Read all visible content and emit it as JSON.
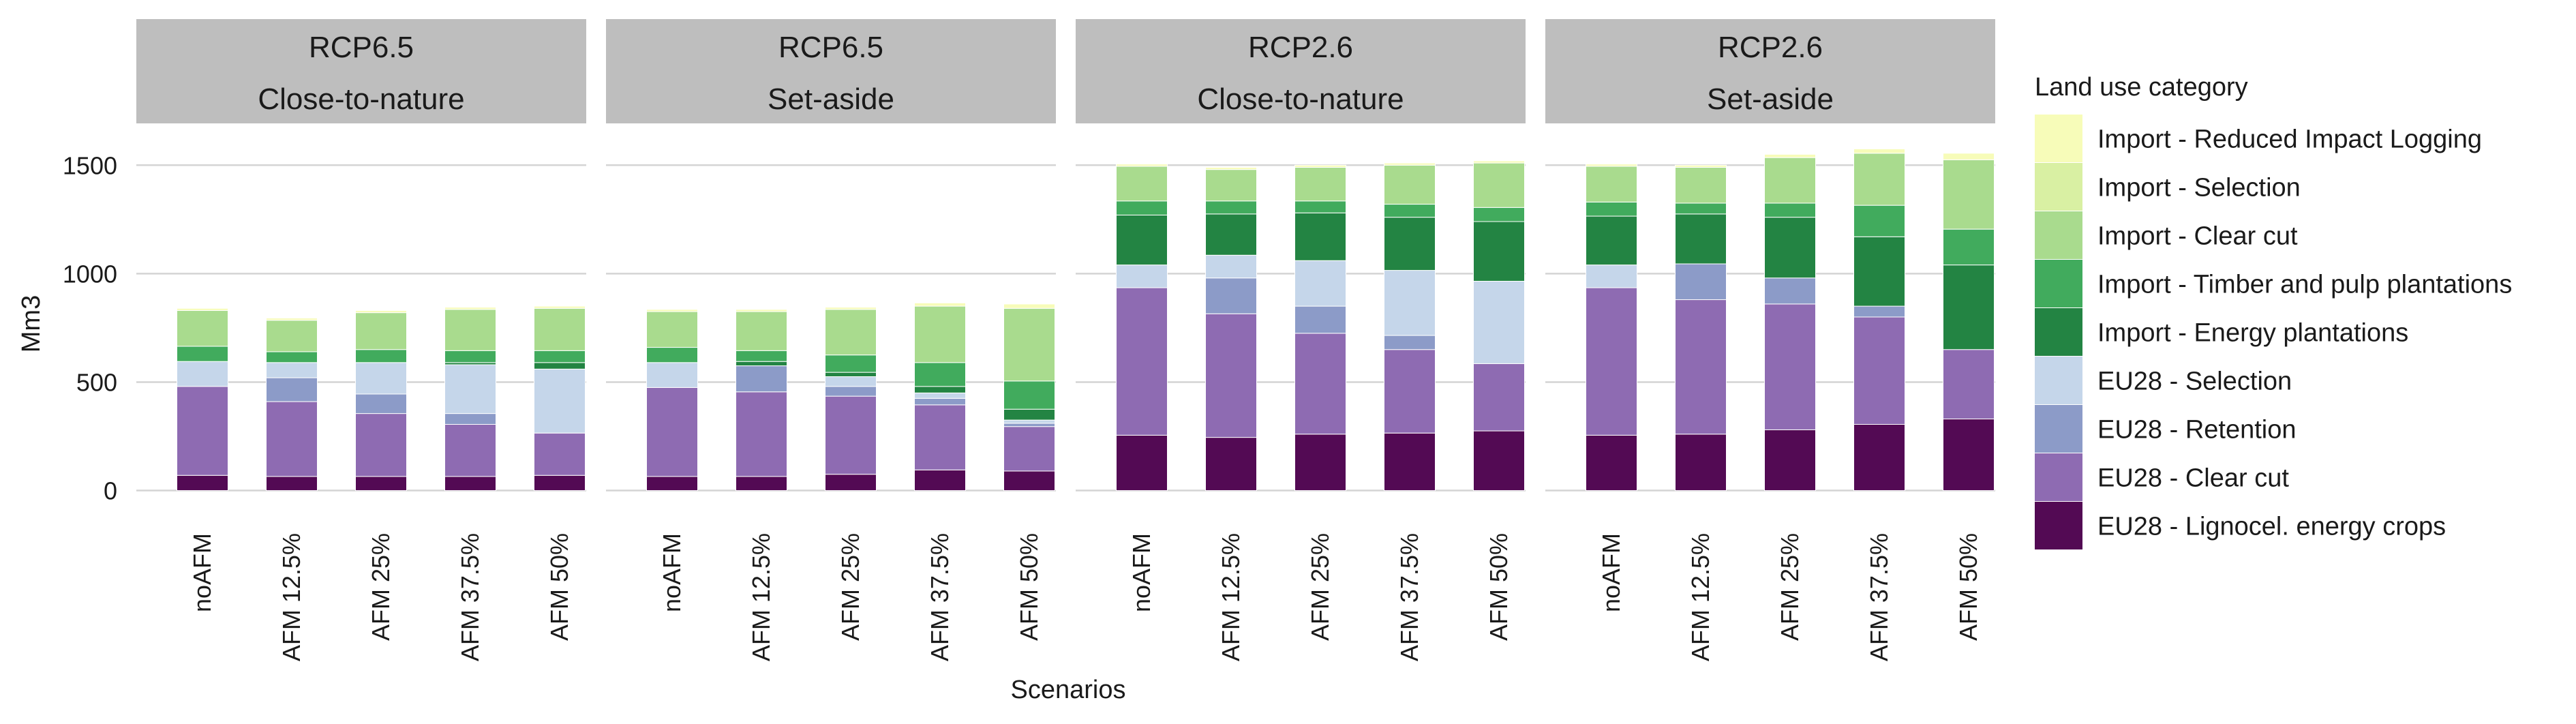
{
  "chart_data": {
    "type": "bar",
    "stacked": true,
    "xlabel": "Scenarios",
    "ylabel": "Mm3",
    "ylim": [
      -80,
      1680
    ],
    "yticks": [
      0,
      500,
      1000,
      1500
    ],
    "grid": true,
    "legend": {
      "title": "Land use category",
      "placement": "right",
      "order": [
        "Import - Reduced Impact Logging",
        "Import - Selection",
        "Import - Clear cut",
        "Import - Timber and pulp plantations",
        "Import - Energy plantations",
        "EU28 - Selection",
        "EU28 - Retention",
        "EU28 - Clear cut",
        "EU28 - Lignocel. energy crops"
      ]
    },
    "categories": [
      "noAFM",
      "AFM 12.5%",
      "AFM 25%",
      "AFM 37.5%",
      "AFM 50%"
    ],
    "series_meta": [
      {
        "name": "EU28 - Lignocel. energy crops",
        "color": "#530a54"
      },
      {
        "name": "EU28 - Clear cut",
        "color": "#8e6bb2"
      },
      {
        "name": "EU28 - Retention",
        "color": "#8c9bc8"
      },
      {
        "name": "EU28 - Selection",
        "color": "#c5d6ea"
      },
      {
        "name": "Import - Energy plantations",
        "color": "#238443"
      },
      {
        "name": "Import - Timber and pulp plantations",
        "color": "#41ab5d"
      },
      {
        "name": "Import - Clear cut",
        "color": "#a9db8e"
      },
      {
        "name": "Import - Selection",
        "color": "#d9f0a3"
      },
      {
        "name": "Import - Reduced Impact Logging",
        "color": "#f7fcb9"
      }
    ],
    "panels": [
      {
        "strip": [
          "RCP6.5",
          "Close-to-nature"
        ],
        "bars": [
          [
            70,
            410,
            0,
            115,
            0,
            70,
            165,
            0,
            10
          ],
          [
            65,
            345,
            110,
            70,
            0,
            50,
            145,
            0,
            10
          ],
          [
            65,
            290,
            90,
            145,
            0,
            60,
            170,
            0,
            10
          ],
          [
            65,
            240,
            50,
            225,
            10,
            55,
            190,
            0,
            10
          ],
          [
            70,
            195,
            0,
            295,
            30,
            55,
            195,
            0,
            10
          ]
        ]
      },
      {
        "strip": [
          "RCP6.5",
          "Set-aside"
        ],
        "bars": [
          [
            65,
            410,
            0,
            115,
            0,
            70,
            165,
            0,
            10
          ],
          [
            65,
            390,
            120,
            0,
            20,
            50,
            180,
            0,
            10
          ],
          [
            75,
            360,
            45,
            45,
            20,
            80,
            210,
            0,
            10
          ],
          [
            95,
            300,
            30,
            25,
            30,
            110,
            260,
            0,
            15
          ],
          [
            90,
            205,
            15,
            15,
            50,
            130,
            335,
            0,
            20
          ]
        ]
      },
      {
        "strip": [
          "RCP2.6",
          "Close-to-nature"
        ],
        "bars": [
          [
            255,
            680,
            0,
            105,
            230,
            65,
            160,
            0,
            10
          ],
          [
            245,
            570,
            165,
            105,
            190,
            60,
            145,
            0,
            10
          ],
          [
            260,
            465,
            125,
            210,
            220,
            55,
            155,
            0,
            10
          ],
          [
            265,
            385,
            65,
            300,
            245,
            60,
            180,
            0,
            10
          ],
          [
            275,
            310,
            0,
            380,
            275,
            65,
            205,
            0,
            10
          ]
        ]
      },
      {
        "strip": [
          "RCP2.6",
          "Set-aside"
        ],
        "bars": [
          [
            255,
            680,
            0,
            105,
            225,
            65,
            165,
            0,
            10
          ],
          [
            260,
            620,
            165,
            0,
            230,
            50,
            165,
            0,
            10
          ],
          [
            280,
            580,
            120,
            0,
            280,
            65,
            210,
            0,
            15
          ],
          [
            305,
            495,
            50,
            0,
            320,
            145,
            240,
            0,
            20
          ],
          [
            330,
            320,
            0,
            0,
            390,
            165,
            320,
            0,
            30
          ]
        ]
      }
    ]
  }
}
